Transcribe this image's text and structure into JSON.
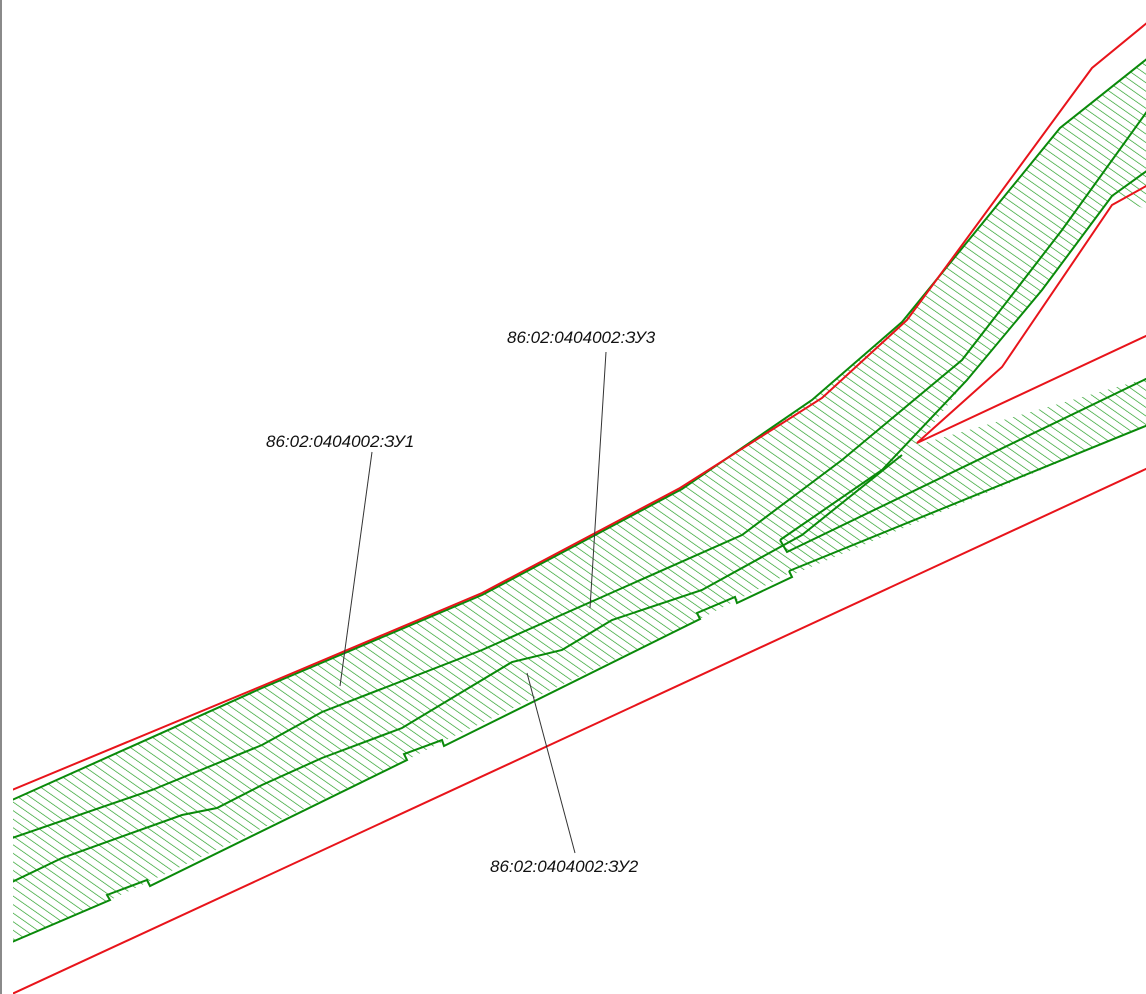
{
  "map": {
    "colors": {
      "boundary": "#e8141b",
      "parcel": "#0a8a0a",
      "hatch": "#1a9a1a",
      "leader": "#333333",
      "label": "#111111"
    },
    "parcels": [
      {
        "id": "zu1",
        "label": "86:02:0404002:ЗУ1"
      },
      {
        "id": "zu2",
        "label": "86:02:0404002:ЗУ2"
      },
      {
        "id": "zu3",
        "label": "86:02:0404002:ЗУ3"
      }
    ]
  }
}
